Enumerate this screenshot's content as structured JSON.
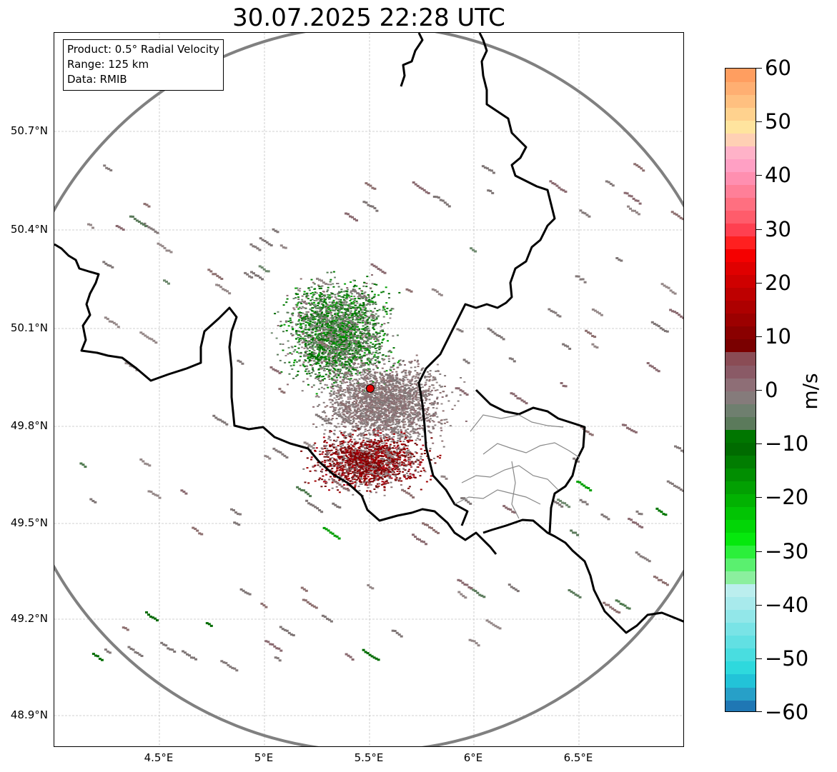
{
  "title": "30.07.2025 22:28 UTC",
  "info_box": {
    "product": "Product: 0.5° Radial Velocity",
    "range": "Range: 125 km",
    "source": "Data: RMIB"
  },
  "map": {
    "lat_labels": [
      "50.7°N",
      "50.4°N",
      "50.1°N",
      "49.8°N",
      "49.5°N",
      "49.2°N",
      "48.9°N"
    ],
    "lon_labels": [
      "4.5°E",
      "5°E",
      "5.5°E",
      "6°E",
      "6.5°E"
    ],
    "radar_site": {
      "lat": 49.91,
      "lon": 5.5
    },
    "colors": {
      "range_ring": "#808080",
      "border": "#000000",
      "admin_border": "#888888",
      "radar_marker": "#e00000",
      "grid": "#bbbbbb"
    }
  },
  "colorbar": {
    "unit": "m/s",
    "ticks": [
      "60",
      "50",
      "40",
      "30",
      "20",
      "10",
      "0",
      "−10",
      "−20",
      "−30",
      "−40",
      "−50",
      "−60"
    ],
    "min": -60,
    "max": 60,
    "colors": [
      "#1f77b4",
      "#27a0c8",
      "#22c3d8",
      "#2ed9dd",
      "#49dde0",
      "#62e0e3",
      "#79e3e6",
      "#92e7e9",
      "#a8eaec",
      "#bbeeee",
      "#8bef9e",
      "#5af06f",
      "#2bef3b",
      "#06e80d",
      "#02d606",
      "#02c404",
      "#02b202",
      "#02a002",
      "#018e01",
      "#017d01",
      "#006b00",
      "#007600",
      "#5b7a5b",
      "#6f7f6f",
      "#857b7b",
      "#8e6e76",
      "#8a5a66",
      "#8a4c55",
      "#7a0000",
      "#8a0000",
      "#9c0000",
      "#ad0000",
      "#be0000",
      "#cf0000",
      "#e00000",
      "#f50000",
      "#ff2020",
      "#ff4050",
      "#ff5c6b",
      "#ff6f80",
      "#ff7f98",
      "#ff8fb0",
      "#ffa0c4",
      "#ffb2c8",
      "#ffd0b4",
      "#ffe49e",
      "#ffd28e",
      "#ffc080",
      "#ffaf72",
      "#ff9e60"
    ]
  }
}
